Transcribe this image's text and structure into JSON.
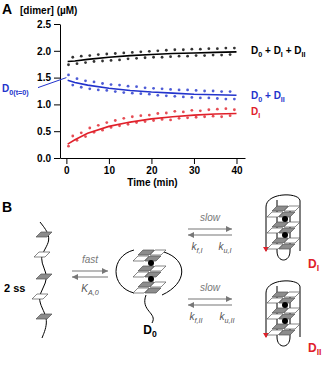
{
  "chart_data": {
    "type": "scatter",
    "title": "A",
    "y_label": "[dimer] (µM)",
    "x_label": "Time (min)",
    "x": [
      0.5,
      1.5,
      2.5,
      3.5,
      4.5,
      5.5,
      6.5,
      7.5,
      8.5,
      9.5,
      10.5,
      11.5,
      12.5,
      13.5,
      14.5,
      15.5,
      16.5,
      17.5,
      18.5,
      19.5,
      20.5,
      21.5,
      22.5,
      23.5,
      24.5,
      25.5,
      26.5,
      27.5,
      28.5,
      29.5,
      30.5,
      31.5,
      32.5,
      33.5,
      34.5,
      35.5,
      36.5,
      37.5,
      38.5,
      39.5
    ],
    "xlim": [
      -1.5,
      42
    ],
    "ylim": [
      0,
      2.5
    ],
    "xticks": [
      0,
      10,
      20,
      30,
      40
    ],
    "yticks": [
      {
        "value": 0,
        "label": "0.0"
      },
      {
        "value": 0.5,
        "label": "0.5"
      },
      {
        "value": 1,
        "label": "1.0"
      },
      {
        "value": 1.5,
        "label": "1.5"
      },
      {
        "value": 2,
        "label": "2.0"
      },
      {
        "value": 2.5,
        "label": "2.5"
      }
    ],
    "grid": false,
    "series": [
      {
        "name": "D0 + DI + DII",
        "color": "#000000",
        "type": "scatter",
        "marker": "circle",
        "values": [
          1.74,
          1.88,
          1.76,
          1.9,
          1.78,
          1.91,
          1.8,
          1.93,
          1.81,
          1.94,
          1.82,
          1.95,
          1.83,
          1.96,
          1.85,
          1.97,
          1.86,
          1.98,
          1.87,
          1.99,
          1.88,
          2.0,
          1.88,
          2.01,
          1.89,
          2.02,
          1.9,
          2.02,
          1.9,
          2.03,
          1.91,
          2.03,
          1.91,
          2.04,
          1.92,
          2.04,
          1.92,
          2.05,
          1.93,
          2.05
        ]
      },
      {
        "name": "D0 + DII",
        "color": "#2233cc",
        "type": "scatter",
        "marker": "circle",
        "values": [
          1.55,
          1.36,
          1.48,
          1.32,
          1.44,
          1.29,
          1.42,
          1.27,
          1.39,
          1.26,
          1.37,
          1.24,
          1.36,
          1.22,
          1.34,
          1.21,
          1.33,
          1.2,
          1.31,
          1.19,
          1.3,
          1.17,
          1.29,
          1.16,
          1.28,
          1.15,
          1.27,
          1.14,
          1.27,
          1.13,
          1.26,
          1.12,
          1.25,
          1.12,
          1.25,
          1.11,
          1.24,
          1.1,
          1.24,
          1.1
        ]
      },
      {
        "name": "DI",
        "color": "#e0202a",
        "type": "scatter",
        "marker": "circle",
        "values": [
          0.22,
          0.41,
          0.33,
          0.47,
          0.4,
          0.56,
          0.48,
          0.61,
          0.52,
          0.66,
          0.57,
          0.7,
          0.6,
          0.74,
          0.63,
          0.77,
          0.66,
          0.79,
          0.68,
          0.8,
          0.7,
          0.83,
          0.72,
          0.84,
          0.71,
          0.87,
          0.74,
          0.86,
          0.75,
          0.89,
          0.76,
          0.88,
          0.77,
          0.9,
          0.78,
          0.91,
          0.77,
          0.92,
          0.79,
          0.9
        ]
      },
      {
        "type": "line",
        "color": "#000000",
        "line_style": "solid",
        "x": [
          0.3,
          2,
          5,
          10,
          15,
          20,
          25,
          30,
          35,
          40
        ],
        "values": [
          1.8,
          1.81,
          1.84,
          1.88,
          1.91,
          1.93,
          1.95,
          1.96,
          1.97,
          1.98
        ]
      },
      {
        "type": "line",
        "color": "#2233cc",
        "line_style": "solid",
        "x": [
          0.3,
          2,
          5,
          10,
          15,
          20,
          25,
          30,
          35,
          40
        ],
        "values": [
          1.45,
          1.41,
          1.36,
          1.3,
          1.26,
          1.23,
          1.21,
          1.19,
          1.18,
          1.17
        ]
      },
      {
        "type": "line",
        "color": "#e0202a",
        "line_style": "solid",
        "x": [
          0.3,
          2,
          5,
          10,
          15,
          20,
          25,
          30,
          35,
          40
        ],
        "values": [
          0.26,
          0.34,
          0.46,
          0.59,
          0.67,
          0.73,
          0.77,
          0.8,
          0.82,
          0.83
        ]
      }
    ],
    "annotations": [
      {
        "text": "D0(t=0)",
        "x": 0,
        "y": 1.5,
        "color": "#2233cc"
      }
    ]
  },
  "diagram": {
    "panel_label": "B",
    "ss_label": "2 ss",
    "fast": "fast",
    "k_a0": "KA,0",
    "d0": "D0",
    "upper": {
      "slow": "slow",
      "kf": "kf,I",
      "ku": "ku,I",
      "name": "DI"
    },
    "lower": {
      "slow": "slow",
      "kf": "kf,II",
      "ku": "ku,II",
      "name": "DII"
    }
  }
}
